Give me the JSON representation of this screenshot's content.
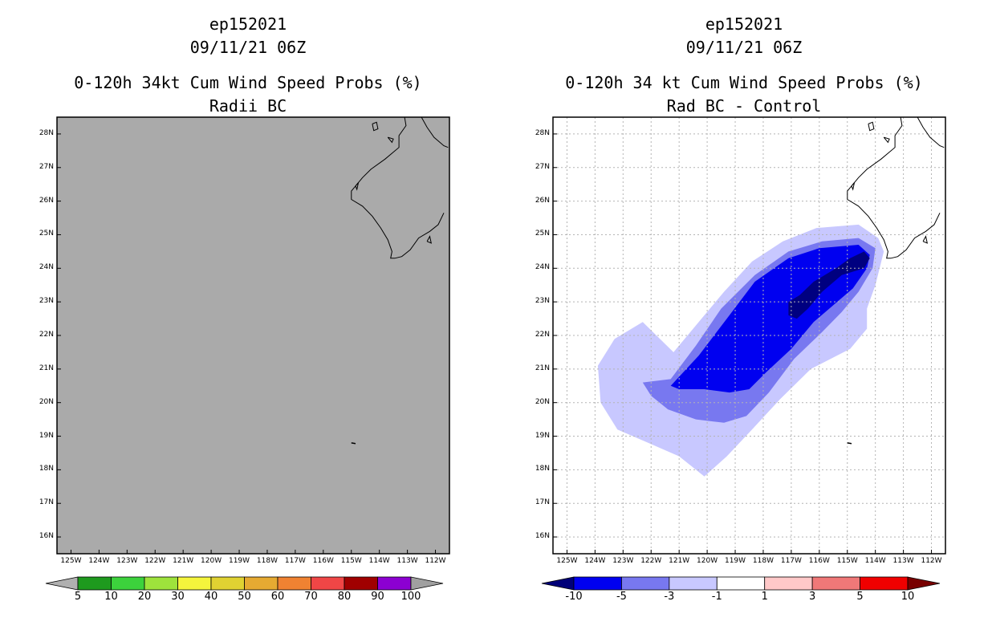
{
  "chart_data": [
    {
      "type": "heatmap",
      "panel": "left",
      "title_lines": [
        "ep152021",
        "09/11/21 06Z",
        "0-120h 34kt Cum Wind Speed Probs (%)",
        "Radii BC"
      ],
      "x_ticks": [
        "125W",
        "124W",
        "123W",
        "122W",
        "121W",
        "120W",
        "119W",
        "118W",
        "117W",
        "116W",
        "115W",
        "114W",
        "113W",
        "112W"
      ],
      "y_ticks": [
        "28N",
        "27N",
        "26N",
        "25N",
        "24N",
        "23N",
        "22N",
        "21N",
        "20N",
        "19N",
        "18N",
        "17N",
        "16N"
      ],
      "xlim": [
        -125.5,
        -111.5
      ],
      "ylim": [
        15.5,
        28.5
      ],
      "background_color": "#aaaaaa",
      "grid": false,
      "colorbar": {
        "labels": [
          "5",
          "10",
          "20",
          "30",
          "40",
          "50",
          "60",
          "70",
          "80",
          "90",
          "100"
        ],
        "colors": [
          "#b0b0b0",
          "#1e9a1e",
          "#3cd23c",
          "#9ee33c",
          "#f5f53c",
          "#e0d232",
          "#e6aa32",
          "#f08232",
          "#f04646",
          "#a00000",
          "#8c00d2",
          "#a0a0a0"
        ]
      }
    },
    {
      "type": "heatmap",
      "panel": "right",
      "title_lines": [
        "ep152021",
        "09/11/21 06Z",
        "0-120h 34 kt Cum Wind Speed Probs (%)",
        "Rad BC - Control"
      ],
      "x_ticks": [
        "125W",
        "124W",
        "123W",
        "122W",
        "121W",
        "120W",
        "119W",
        "118W",
        "117W",
        "116W",
        "115W",
        "114W",
        "113W",
        "112W"
      ],
      "y_ticks": [
        "28N",
        "27N",
        "26N",
        "25N",
        "24N",
        "23N",
        "22N",
        "21N",
        "20N",
        "19N",
        "18N",
        "17N",
        "16N"
      ],
      "xlim": [
        -125.5,
        -111.5
      ],
      "ylim": [
        15.5,
        28.5
      ],
      "background_color": "#ffffff",
      "grid": true,
      "contour_levels": [
        {
          "range": "-1 to -3",
          "color": "#c8c8ff",
          "lonlat": [
            [
              -121.2,
              21.5
            ],
            [
              -120.1,
              22.6
            ],
            [
              -119.4,
              23.3
            ],
            [
              -118.4,
              24.2
            ],
            [
              -117.3,
              24.8
            ],
            [
              -116.1,
              25.2
            ],
            [
              -114.6,
              25.3
            ],
            [
              -113.9,
              24.9
            ],
            [
              -113.7,
              24.5
            ],
            [
              -114.0,
              23.5
            ],
            [
              -114.3,
              22.8
            ],
            [
              -114.3,
              22.2
            ],
            [
              -114.9,
              21.6
            ],
            [
              -116.3,
              21.0
            ],
            [
              -117.4,
              20.1
            ],
            [
              -118.4,
              19.2
            ],
            [
              -119.3,
              18.4
            ],
            [
              -120.1,
              17.8
            ],
            [
              -121.0,
              18.4
            ],
            [
              -122.1,
              18.8
            ],
            [
              -123.2,
              19.2
            ],
            [
              -123.8,
              20.0
            ],
            [
              -123.9,
              21.1
            ],
            [
              -123.3,
              21.9
            ],
            [
              -122.3,
              22.4
            ]
          ]
        },
        {
          "range": "-3 to -5",
          "color": "#7878f0",
          "lonlat": [
            [
              -121.3,
              20.7
            ],
            [
              -120.4,
              21.7
            ],
            [
              -119.5,
              22.8
            ],
            [
              -118.3,
              23.8
            ],
            [
              -117.1,
              24.5
            ],
            [
              -115.9,
              24.8
            ],
            [
              -114.6,
              24.9
            ],
            [
              -114.0,
              24.6
            ],
            [
              -114.1,
              24.0
            ],
            [
              -114.6,
              23.3
            ],
            [
              -115.2,
              22.7
            ],
            [
              -115.9,
              22.1
            ],
            [
              -116.9,
              21.3
            ],
            [
              -117.8,
              20.3
            ],
            [
              -118.6,
              19.6
            ],
            [
              -119.4,
              19.4
            ],
            [
              -120.4,
              19.5
            ],
            [
              -121.4,
              19.8
            ],
            [
              -122.0,
              20.2
            ],
            [
              -122.3,
              20.6
            ]
          ]
        },
        {
          "range": "-5 to -10",
          "color": "#0000f0",
          "lonlat": [
            [
              -121.3,
              20.5
            ],
            [
              -120.3,
              21.4
            ],
            [
              -119.3,
              22.5
            ],
            [
              -118.3,
              23.6
            ],
            [
              -117.1,
              24.3
            ],
            [
              -116.0,
              24.6
            ],
            [
              -114.6,
              24.7
            ],
            [
              -114.2,
              24.4
            ],
            [
              -114.3,
              24.0
            ],
            [
              -114.8,
              23.4
            ],
            [
              -115.5,
              22.9
            ],
            [
              -116.2,
              22.4
            ],
            [
              -117.0,
              21.6
            ],
            [
              -117.9,
              20.9
            ],
            [
              -118.5,
              20.4
            ],
            [
              -119.2,
              20.3
            ],
            [
              -120.1,
              20.4
            ],
            [
              -121.0,
              20.4
            ]
          ]
        },
        {
          "range": "< -10",
          "color": "#000080",
          "lonlat": [
            [
              -117.1,
              23.0
            ],
            [
              -116.7,
              23.2
            ],
            [
              -116.2,
              23.6
            ],
            [
              -115.4,
              24.0
            ],
            [
              -114.9,
              24.3
            ],
            [
              -114.4,
              24.5
            ],
            [
              -114.2,
              24.3
            ],
            [
              -114.4,
              24.0
            ],
            [
              -115.2,
              23.8
            ],
            [
              -115.9,
              23.3
            ],
            [
              -116.4,
              22.8
            ],
            [
              -116.8,
              22.5
            ],
            [
              -117.1,
              22.6
            ]
          ]
        }
      ],
      "colorbar": {
        "labels": [
          "-10",
          "-5",
          "-3",
          "-1",
          "1",
          "3",
          "5",
          "10"
        ],
        "colors": [
          "#000078",
          "#0000f0",
          "#7878f0",
          "#c8c8ff",
          "#ffffff",
          "#ffc8c8",
          "#f07878",
          "#f00000",
          "#780000"
        ]
      }
    }
  ]
}
